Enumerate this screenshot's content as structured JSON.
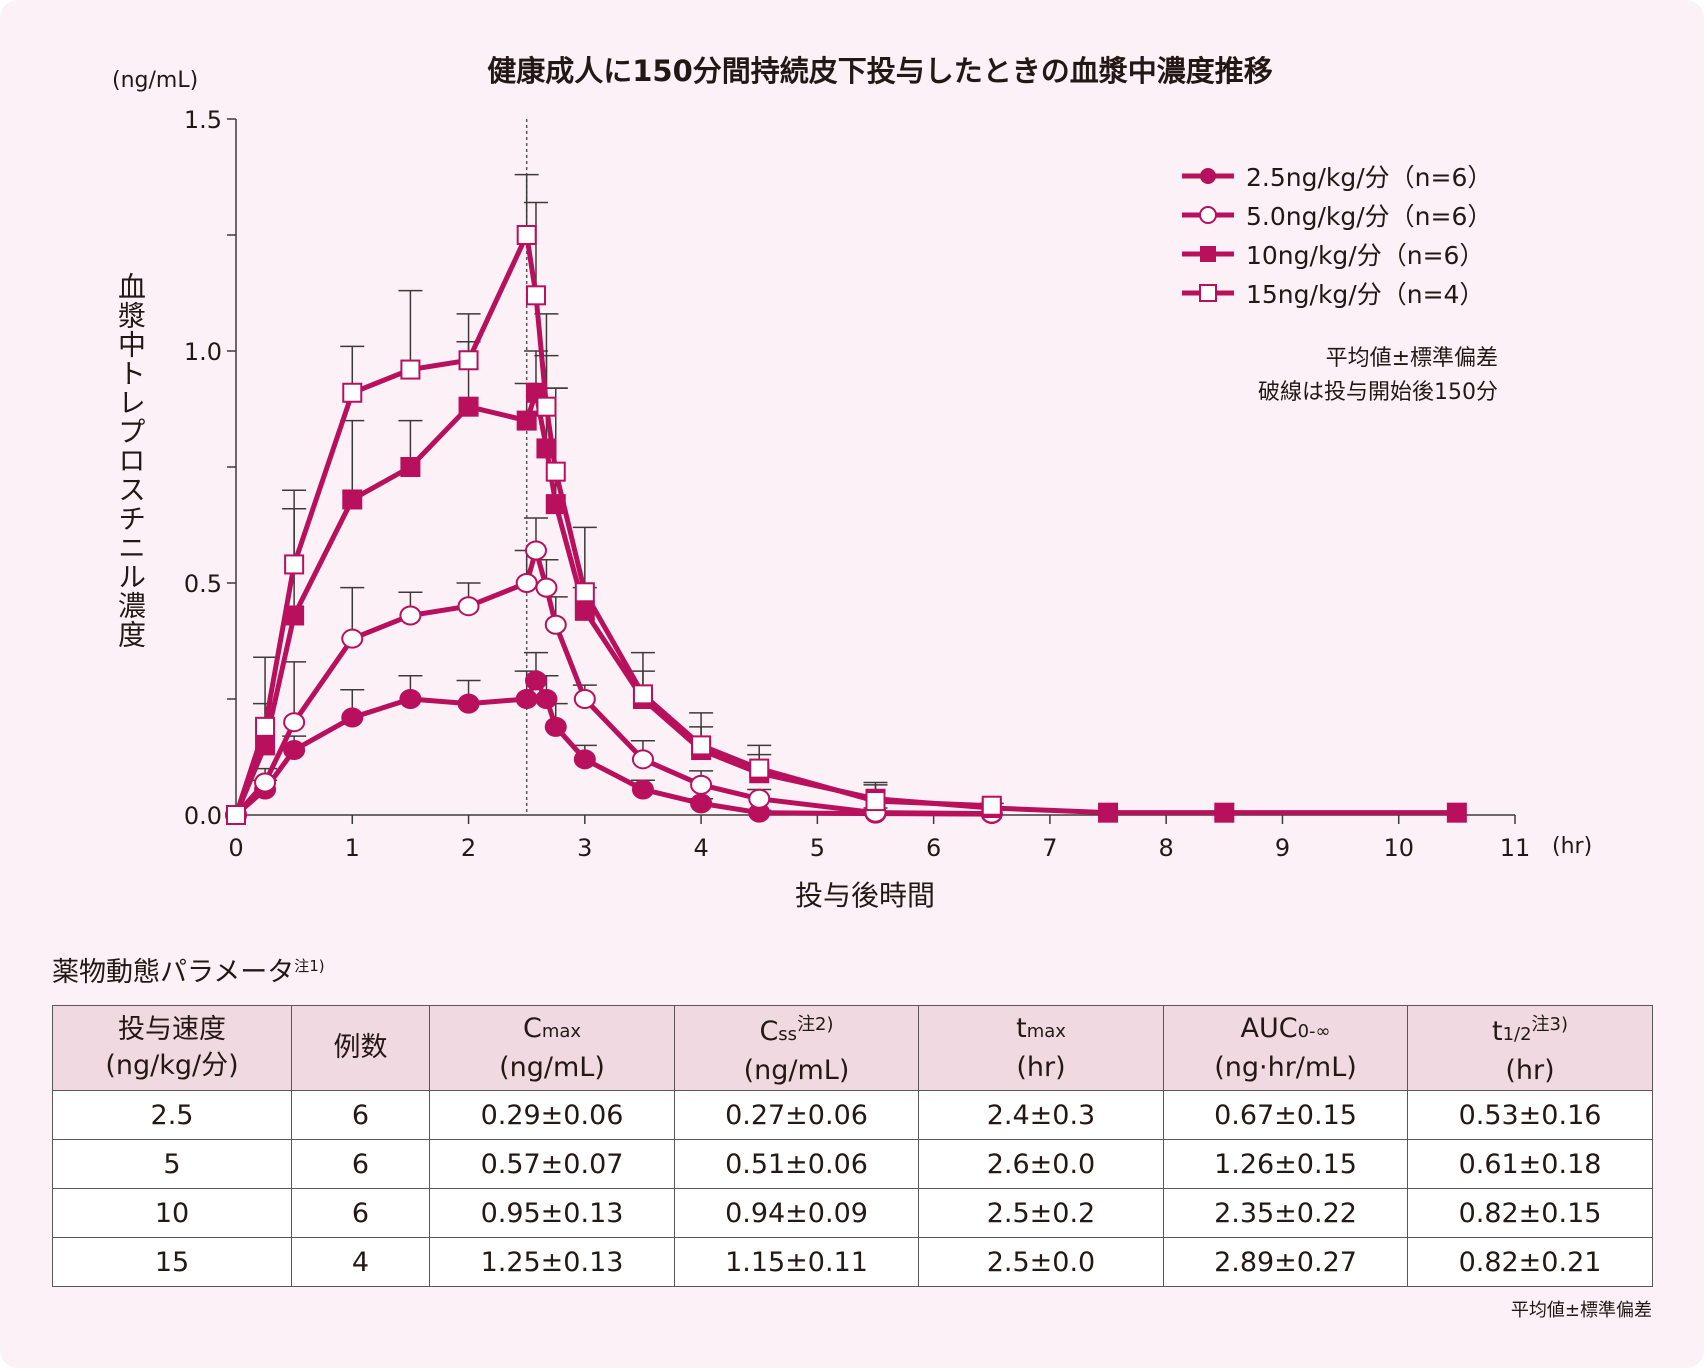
{
  "title": "健康成人に150分間持続皮下投与したときの血漿中濃度推移",
  "colors": {
    "series": "#b8105c",
    "background": "#fcf1f6",
    "table_header": "#f1d9e1",
    "error_bar": "#3e3a39"
  },
  "chart_data": {
    "type": "line",
    "title": "健康成人に150分間持続皮下投与したときの血漿中濃度推移",
    "xlabel": "投与後時間",
    "x_unit": "(hr)",
    "ylabel": "血漿中トレプロスチニル濃度",
    "y_unit": "(ng/mL)",
    "xlim": [
      0,
      11
    ],
    "ylim": [
      0,
      1.5
    ],
    "x_ticks": [
      "0",
      "1",
      "2",
      "3",
      "4",
      "5",
      "6",
      "7",
      "8",
      "9",
      "10",
      "11"
    ],
    "y_ticks": [
      "0.0",
      "0.5",
      "1.0",
      "1.5"
    ],
    "y_tick_values": [
      0,
      0.5,
      1.0,
      1.5
    ],
    "grid": false,
    "legend_position": "top-right",
    "reference_line_x": 2.5,
    "x": [
      0,
      0.25,
      0.5,
      1,
      1.5,
      2,
      2.5,
      2.58,
      2.67,
      2.75,
      3,
      3.5,
      4,
      4.5,
      5.5,
      6.5,
      7.5,
      8.5,
      10.5
    ],
    "series": [
      {
        "name": "2.5ng/kg/分（n=6）",
        "marker": "filled-circle",
        "values": [
          0,
          0.055,
          0.14,
          0.21,
          0.25,
          0.24,
          0.25,
          0.29,
          0.25,
          0.19,
          0.12,
          0.055,
          0.025,
          0.005,
          0.003,
          0.002,
          null,
          null,
          null
        ],
        "sd": [
          0,
          0.02,
          0.03,
          0.06,
          0.05,
          0.05,
          0.06,
          0.06,
          0.05,
          0.05,
          0.03,
          0.02,
          0.01,
          0.005,
          0,
          0,
          null,
          null,
          null
        ]
      },
      {
        "name": "5.0ng/kg/分（n=6）",
        "marker": "open-circle",
        "values": [
          0,
          0.07,
          0.2,
          0.38,
          0.43,
          0.45,
          0.5,
          0.57,
          0.49,
          0.41,
          0.25,
          0.12,
          0.065,
          0.035,
          0.005,
          0.003,
          null,
          null,
          null
        ],
        "sd": [
          0,
          0.03,
          0.13,
          0.11,
          0.05,
          0.05,
          0.07,
          0.07,
          0.06,
          0.06,
          0.03,
          0.04,
          0.03,
          0.02,
          0.01,
          0,
          null,
          null,
          null
        ]
      },
      {
        "name": "10ng/kg/分（n=6）",
        "marker": "filled-square",
        "values": [
          0,
          0.15,
          0.43,
          0.68,
          0.75,
          0.88,
          0.85,
          0.91,
          0.79,
          0.67,
          0.44,
          0.25,
          0.14,
          0.09,
          0.035,
          0.015,
          0.005,
          0.005,
          0.005
        ],
        "sd": [
          0,
          0.09,
          0.23,
          0.17,
          0.1,
          0.14,
          0.08,
          0.09,
          0.2,
          0.25,
          0.05,
          0.06,
          0.05,
          0.04,
          0.03,
          0.01,
          0,
          0,
          0
        ]
      },
      {
        "name": "15ng/kg/分（n=4）",
        "marker": "open-square",
        "values": [
          0,
          0.19,
          0.54,
          0.91,
          0.96,
          0.98,
          1.25,
          1.12,
          0.88,
          0.74,
          0.48,
          0.26,
          0.15,
          0.1,
          0.03,
          0.02,
          null,
          null,
          null
        ],
        "sd": [
          0,
          0.15,
          0.16,
          0.1,
          0.17,
          0.1,
          0.13,
          0.2,
          0.2,
          0.18,
          0.14,
          0.09,
          0.07,
          0.05,
          0.04,
          0,
          null,
          null,
          null
        ]
      }
    ]
  },
  "notes": [
    "平均値±標準偏差",
    "破線は投与開始後150分"
  ],
  "table": {
    "heading": "薬物動態パラメータ",
    "heading_note": "注1)",
    "headers": [
      {
        "l1": "投与速度",
        "l2": "(ng/kg/分)"
      },
      {
        "l1": "例数",
        "l2": ""
      },
      {
        "main": "C",
        "sub": "max",
        "sup": "",
        "l2": "(ng/mL)"
      },
      {
        "main": "C",
        "sub": "ss",
        "sup": "注2)",
        "l2": "(ng/mL)"
      },
      {
        "main": "t",
        "sub": "max",
        "sup": "",
        "l2": "(hr)"
      },
      {
        "main": "AUC",
        "sub": "0-∞",
        "sup": "",
        "l2": "(ng·hr/mL)"
      },
      {
        "main": "t",
        "sub": "1/2",
        "sup": "注3)",
        "l2": "(hr)"
      }
    ],
    "rows": [
      [
        "2.5",
        "6",
        "0.29±0.06",
        "0.27±0.06",
        "2.4±0.3",
        "0.67±0.15",
        "0.53±0.16"
      ],
      [
        "5",
        "6",
        "0.57±0.07",
        "0.51±0.06",
        "2.6±0.0",
        "1.26±0.15",
        "0.61±0.18"
      ],
      [
        "10",
        "6",
        "0.95±0.13",
        "0.94±0.09",
        "2.5±0.2",
        "2.35±0.22",
        "0.82±0.15"
      ],
      [
        "15",
        "4",
        "1.25±0.13",
        "1.15±0.11",
        "2.5±0.0",
        "2.89±0.27",
        "0.82±0.21"
      ]
    ],
    "footnote": "平均値±標準偏差"
  }
}
